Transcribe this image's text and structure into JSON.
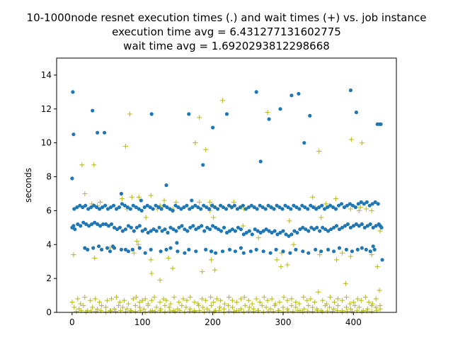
{
  "chart_data": {
    "type": "scatter",
    "title_lines": [
      "10-1000node resnet execution times (.) and wait times (+) vs. job instance",
      "execution time avg = 6.431277131602775",
      "wait time avg = 1.6920293812298668"
    ],
    "xlabel": "",
    "ylabel": "seconds",
    "xlim": [
      -22,
      461
    ],
    "ylim": [
      0,
      15
    ],
    "xticks": [
      0,
      100,
      200,
      300,
      400
    ],
    "yticks": [
      0,
      2,
      4,
      6,
      8,
      10,
      12,
      14
    ],
    "grid": false,
    "colors": {
      "execution": "#1f77b4",
      "wait": "#bcbd22"
    },
    "series": [
      {
        "marker": "dot",
        "x": [
          0,
          2,
          4,
          8,
          12,
          16,
          20,
          24,
          28,
          32,
          36,
          40,
          44,
          48,
          52,
          56,
          60,
          64,
          68,
          72,
          76,
          80,
          84,
          88,
          92,
          96,
          100,
          104,
          108,
          112,
          116,
          120,
          124,
          128,
          132,
          136,
          140,
          144,
          148,
          152,
          156,
          160,
          164,
          168,
          172,
          176,
          180,
          184,
          188,
          192,
          196,
          200,
          204,
          208,
          212,
          216,
          220,
          224,
          228,
          232,
          236,
          240,
          244,
          248,
          252,
          256,
          260,
          264,
          268,
          272,
          276,
          280,
          284,
          288,
          292,
          296,
          300,
          304,
          308,
          312,
          316,
          320,
          324,
          328,
          332,
          336,
          340,
          344,
          348,
          352,
          356,
          360,
          364,
          368,
          372,
          376,
          380,
          384,
          388,
          392,
          396,
          400,
          404,
          408,
          412,
          416,
          420,
          424,
          428,
          432,
          436,
          438,
          440,
          3,
          7,
          11,
          15,
          19,
          23,
          27,
          31,
          35,
          39,
          43,
          47,
          51,
          55,
          59,
          63,
          67,
          71,
          75,
          79,
          83,
          87,
          91,
          95,
          99,
          103,
          107,
          111,
          115,
          119,
          123,
          127,
          131,
          135,
          139,
          143,
          147,
          151,
          155,
          159,
          163,
          167,
          171,
          175,
          179,
          183,
          187,
          191,
          195,
          199,
          203,
          207,
          211,
          215,
          219,
          223,
          227,
          231,
          235,
          239,
          243,
          247,
          251,
          255,
          259,
          263,
          267,
          271,
          275,
          279,
          283,
          287,
          291,
          295,
          299,
          303,
          307,
          311,
          315,
          319,
          323,
          327,
          331,
          335,
          339,
          343,
          347,
          351,
          355,
          359,
          363,
          367,
          371,
          375,
          379,
          383,
          387,
          391,
          395,
          399,
          403,
          407,
          411,
          415,
          419,
          423,
          427,
          431,
          435,
          18,
          22,
          30,
          38,
          42,
          50,
          54,
          60,
          70,
          80,
          86,
          96,
          104,
          112,
          126,
          134,
          140,
          150,
          160,
          166,
          176,
          190,
          198,
          204,
          214,
          224,
          232,
          244,
          254,
          262,
          272,
          282,
          290,
          300,
          310,
          318,
          328,
          336,
          346,
          354,
          364,
          372,
          380,
          390,
          398,
          406,
          412,
          418,
          424,
          430,
          0,
          1,
          2,
          29,
          36,
          46,
          58,
          70,
          76,
          98,
          113,
          134,
          149,
          166,
          170,
          186,
          198,
          200,
          220,
          240,
          262,
          268,
          280,
          296,
          312,
          322,
          330,
          338,
          396,
          404,
          428,
          434,
          437,
          439,
          441
        ],
        "y": [
          5.0,
          5.1,
          4.9,
          5.2,
          5.1,
          5.3,
          5.2,
          5.1,
          5.2,
          5.3,
          5.2,
          5.1,
          5.2,
          5.2,
          5.1,
          5.2,
          5.0,
          4.9,
          5.0,
          4.8,
          4.9,
          5.1,
          5.0,
          4.8,
          5.0,
          5.1,
          4.8,
          4.9,
          4.7,
          4.8,
          4.9,
          4.8,
          5.0,
          4.8,
          4.9,
          4.7,
          5.0,
          4.9,
          4.8,
          5.0,
          5.1,
          4.9,
          4.8,
          5.0,
          5.1,
          4.9,
          5.0,
          5.1,
          4.8,
          5.0,
          4.9,
          5.1,
          5.0,
          4.9,
          4.8,
          5.0,
          4.7,
          4.8,
          4.9,
          4.8,
          5.0,
          4.9,
          4.6,
          4.7,
          4.8,
          4.6,
          4.9,
          4.8,
          4.7,
          4.8,
          4.9,
          4.8,
          4.7,
          4.8,
          4.6,
          4.7,
          4.8,
          4.6,
          4.5,
          4.6,
          4.8,
          4.7,
          4.9,
          5.0,
          4.9,
          4.8,
          5.0,
          4.9,
          5.0,
          4.8,
          5.0,
          4.9,
          4.8,
          4.9,
          5.0,
          5.1,
          4.9,
          5.0,
          5.1,
          5.2,
          5.0,
          5.1,
          5.2,
          5.1,
          5.2,
          5.0,
          5.1,
          5.2,
          5.0,
          5.1,
          5.2,
          5.1,
          5.0,
          6.1,
          6.2,
          6.3,
          6.2,
          6.3,
          6.1,
          6.2,
          6.3,
          6.2,
          6.1,
          6.2,
          6.3,
          6.1,
          6.2,
          6.3,
          6.1,
          6.2,
          6.4,
          6.3,
          6.2,
          6.1,
          6.3,
          6.2,
          6.1,
          6.0,
          6.2,
          6.3,
          6.2,
          6.1,
          6.3,
          6.2,
          6.1,
          6.3,
          6.2,
          6.1,
          6.0,
          6.3,
          6.2,
          6.1,
          6.2,
          6.3,
          6.1,
          6.2,
          6.3,
          6.2,
          6.1,
          6.3,
          6.2,
          6.1,
          6.3,
          6.2,
          6.1,
          6.3,
          6.2,
          6.1,
          6.3,
          6.2,
          6.3,
          6.1,
          6.2,
          6.3,
          6.1,
          6.2,
          6.3,
          6.2,
          6.1,
          6.3,
          6.2,
          6.1,
          6.3,
          6.2,
          6.1,
          6.3,
          6.2,
          6.1,
          6.3,
          6.2,
          6.1,
          6.3,
          6.2,
          6.1,
          6.3,
          6.2,
          6.1,
          6.3,
          6.2,
          6.1,
          6.2,
          6.3,
          6.1,
          6.2,
          6.3,
          6.2,
          6.1,
          6.3,
          6.4,
          6.2,
          6.3,
          6.4,
          6.3,
          6.2,
          6.4,
          6.5,
          6.4,
          6.5,
          6.3,
          6.4,
          6.5,
          6.4,
          3.8,
          3.7,
          3.8,
          3.9,
          3.7,
          3.8,
          3.6,
          3.8,
          3.7,
          3.6,
          3.7,
          3.8,
          3.5,
          3.7,
          3.6,
          3.7,
          3.8,
          3.6,
          3.5,
          3.7,
          3.6,
          3.7,
          3.6,
          3.5,
          3.6,
          3.7,
          3.6,
          3.5,
          3.6,
          3.7,
          3.6,
          3.5,
          3.7,
          3.6,
          3.5,
          3.7,
          3.6,
          3.5,
          3.7,
          3.6,
          3.7,
          3.6,
          3.8,
          3.7,
          3.6,
          3.7,
          3.8,
          3.7,
          3.6,
          3.7,
          7.9,
          13.0,
          10.5,
          11.9,
          10.6,
          10.6,
          3.9,
          7.0,
          3.7,
          6.6,
          11.7,
          7.5,
          4.1,
          11.7,
          6.6,
          8.7,
          3.6,
          10.9,
          11.7,
          3.8,
          13.0,
          8.9,
          11.4,
          12.0,
          12.8,
          12.9,
          10.0,
          11.6,
          13.1,
          11.8,
          3.9,
          11.1,
          11.1,
          11.1,
          3.1
        ]
      },
      {
        "marker": "plus",
        "x": [
          0,
          8,
          12,
          18,
          26,
          33,
          39,
          50,
          56,
          63,
          68,
          74,
          80,
          87,
          91,
          96,
          100,
          104,
          108,
          113,
          117,
          125,
          130,
          134,
          140,
          145,
          152,
          158,
          163,
          168,
          174,
          179,
          185,
          190,
          197,
          201,
          206,
          211,
          217,
          223,
          228,
          234,
          240,
          245,
          251,
          256,
          262,
          267,
          273,
          278,
          284,
          289,
          295,
          301,
          306,
          312,
          318,
          323,
          329,
          334,
          339,
          345,
          350,
          356,
          362,
          367,
          373,
          378,
          384,
          390,
          395,
          400,
          406,
          411,
          417,
          422,
          427,
          432,
          437,
          3,
          10,
          16,
          22,
          29,
          36,
          42,
          48,
          54,
          60,
          66,
          72,
          78,
          84,
          90,
          96,
          102,
          108,
          114,
          120,
          126,
          132,
          138,
          144,
          150,
          156,
          162,
          168,
          174,
          180,
          186,
          192,
          198,
          204,
          210,
          216,
          222,
          228,
          234,
          240,
          246,
          252,
          258,
          264,
          270,
          276,
          282,
          288,
          294,
          300,
          306,
          312,
          318,
          324,
          330,
          336,
          342,
          348,
          354,
          360,
          366,
          372,
          378,
          384,
          390,
          396,
          402,
          408,
          414,
          420,
          426,
          432,
          438,
          6,
          13,
          20,
          27,
          34,
          41,
          48,
          55,
          62,
          69,
          76,
          83,
          90,
          97,
          104,
          111,
          118,
          125,
          132,
          139,
          146,
          153,
          160,
          167,
          174,
          181,
          188,
          195,
          202,
          209,
          216,
          223,
          230,
          237,
          244,
          251,
          258,
          265,
          272,
          279,
          286,
          293,
          300,
          307,
          314,
          321,
          328,
          335,
          342,
          349,
          356,
          363,
          370,
          377,
          384,
          391,
          398,
          405,
          412,
          419,
          426,
          433,
          2,
          18,
          28,
          32,
          36,
          40,
          76,
          78,
          85,
          88,
          92,
          94,
          112,
          126,
          137,
          143,
          185,
          196,
          198,
          203,
          240,
          244,
          283,
          291,
          298,
          306,
          352,
          366,
          376,
          396,
          410,
          426,
          434,
          14,
          31,
          54,
          71,
          105,
          112,
          125,
          143,
          181,
          201,
          214,
          226,
          243,
          297,
          342,
          354,
          389,
          396,
          408,
          418,
          426,
          438,
          82,
          95,
          113,
          121,
          125,
          131,
          143,
          148,
          175,
          181,
          190,
          196,
          199,
          201,
          230,
          265,
          278,
          309,
          315,
          346,
          351,
          361,
          375,
          384,
          397,
          412,
          438
        ],
        "y": [
          0.6,
          0.8,
          0.5,
          0.9,
          0.7,
          0.8,
          0.6,
          0.7,
          0.8,
          0.9,
          0.6,
          0.7,
          0.5,
          0.8,
          0.9,
          0.6,
          0.7,
          0.8,
          0.5,
          0.7,
          0.9,
          0.6,
          0.8,
          0.7,
          0.5,
          0.9,
          0.6,
          0.8,
          0.7,
          0.9,
          0.6,
          0.5,
          0.8,
          0.7,
          0.9,
          0.6,
          0.8,
          0.7,
          0.5,
          0.9,
          0.7,
          0.6,
          0.8,
          0.9,
          0.7,
          0.5,
          0.8,
          0.6,
          0.9,
          0.7,
          0.8,
          0.5,
          0.6,
          0.9,
          0.7,
          0.8,
          0.6,
          0.5,
          0.9,
          0.7,
          0.8,
          0.6,
          1.2,
          0.7,
          0.5,
          0.9,
          0.6,
          0.8,
          0.7,
          0.9,
          0.5,
          0.6,
          0.8,
          0.7,
          0.9,
          0.6,
          0.5,
          0.8,
          1.3,
          0.3,
          0.2,
          0.4,
          0.1,
          0.3,
          0.2,
          0.4,
          0.3,
          0.1,
          0.2,
          0.4,
          0.3,
          0.2,
          0.1,
          0.4,
          0.3,
          0.2,
          0.4,
          0.1,
          0.3,
          0.2,
          0.4,
          0.3,
          0.1,
          0.2,
          0.4,
          0.3,
          0.2,
          0.1,
          0.4,
          0.3,
          0.2,
          0.4,
          0.1,
          0.3,
          0.2,
          0.4,
          0.3,
          0.1,
          0.2,
          0.4,
          0.3,
          0.2,
          0.1,
          0.4,
          0.3,
          0.2,
          0.4,
          0.1,
          0.3,
          0.2,
          0.4,
          0.3,
          0.1,
          0.2,
          0.4,
          0.3,
          0.2,
          0.1,
          0.4,
          0.3,
          0.2,
          0.4,
          0.1,
          0.3,
          0.2,
          0.4,
          0.3,
          0.1,
          0.2,
          0.4,
          0.3,
          0.2,
          0.05,
          0.1,
          0.02,
          0.08,
          0.05,
          0.1,
          0.02,
          0.07,
          0.05,
          0.1,
          0.03,
          0.08,
          0.05,
          0.1,
          0.02,
          0.07,
          0.05,
          0.1,
          0.03,
          0.08,
          0.05,
          0.1,
          0.02,
          0.07,
          0.05,
          0.1,
          0.03,
          0.08,
          0.05,
          0.1,
          0.02,
          0.07,
          0.05,
          0.1,
          0.03,
          0.08,
          0.05,
          0.1,
          0.02,
          0.07,
          0.05,
          0.1,
          0.03,
          0.08,
          0.05,
          0.1,
          0.02,
          0.07,
          0.05,
          0.1,
          0.03,
          0.08,
          0.05,
          0.1,
          0.02,
          0.07,
          0.05,
          0.1,
          0.03,
          0.08,
          0.05,
          0.1,
          3.4,
          7.0,
          6.4,
          3.2,
          6.3,
          6.5,
          9.8,
          6.1,
          6.8,
          3.5,
          4.2,
          4.0,
          3.1,
          6.2,
          3.2,
          6.1,
          2.4,
          6.0,
          3.1,
          2.5,
          6.2,
          6.1,
          6.2,
          3.1,
          3.5,
          2.8,
          3.4,
          6.3,
          3.1,
          6.1,
          6.2,
          6.0,
          2.7,
          8.7,
          8.7,
          3.8,
          6.7,
          5.6,
          6.9,
          1.9,
          6.0,
          6.5,
          6.3,
          12.5,
          6.2,
          5.1,
          2.7,
          6.8,
          5.6,
          1.7,
          3.3,
          6.0,
          6.1,
          3.4,
          0.4,
          11.7,
          6.8,
          2.3,
          6.1,
          6.3,
          6.6,
          2.6,
          6.5,
          10.0,
          11.5,
          9.6,
          6.5,
          6.3,
          5.6,
          6.5,
          4.4,
          11.8,
          5.4,
          4.0,
          6.2,
          9.5,
          6.4,
          6.7,
          3.5,
          10.2,
          10.0,
          4.8
        ]
      }
    ]
  }
}
